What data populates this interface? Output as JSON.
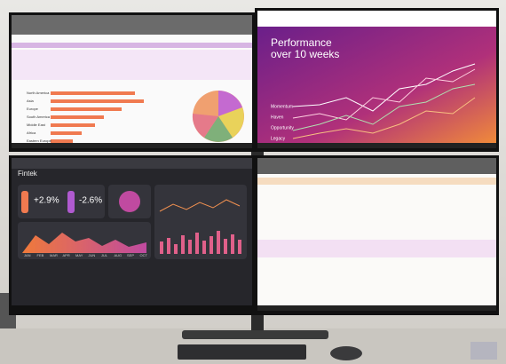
{
  "top_left": {
    "regions": [
      "North America",
      "Asia",
      "Europe",
      "South America",
      "Middle East",
      "Africa",
      "Eastern Europe"
    ]
  },
  "top_right": {
    "title_line1": "Performance",
    "title_line2": "over 10 weeks",
    "legend": [
      "Momentum",
      "Haven",
      "Opportunity",
      "Legacy"
    ]
  },
  "bottom_left": {
    "app": "Fintek",
    "kpis": [
      "+2.9%",
      "-2.6%"
    ],
    "months": [
      "JAN",
      "FEB",
      "MAR",
      "APR",
      "MAY",
      "JUN",
      "JUL",
      "AUG",
      "SEP",
      "OCT"
    ]
  }
}
